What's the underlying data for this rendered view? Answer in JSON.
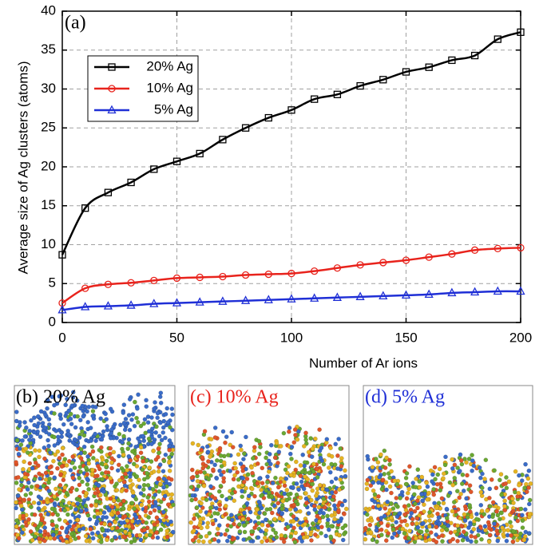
{
  "chart_data": {
    "type": "line",
    "annotation": "(a)",
    "xlabel": "Number of Ar ions",
    "ylabel": "Average size of Ag clusters (atoms)",
    "x": [
      0,
      10,
      20,
      30,
      40,
      50,
      60,
      70,
      80,
      90,
      100,
      110,
      120,
      130,
      140,
      150,
      160,
      170,
      180,
      190,
      200
    ],
    "series": [
      {
        "name": "20% Ag",
        "color": "#000000",
        "marker": "square",
        "values": [
          8.7,
          14.7,
          16.7,
          18.0,
          19.7,
          20.7,
          21.7,
          23.5,
          25.0,
          26.3,
          27.3,
          28.7,
          29.3,
          30.4,
          31.2,
          32.2,
          32.8,
          33.7,
          34.3,
          36.4,
          37.3
        ]
      },
      {
        "name": "10% Ag",
        "color": "#e8231c",
        "marker": "circle",
        "values": [
          2.5,
          4.4,
          4.9,
          5.1,
          5.4,
          5.7,
          5.8,
          5.9,
          6.1,
          6.2,
          6.3,
          6.6,
          7.0,
          7.4,
          7.7,
          8.0,
          8.4,
          8.8,
          9.3,
          9.5,
          9.6
        ]
      },
      {
        "name": "5% Ag",
        "color": "#1f2fd6",
        "marker": "triangle",
        "values": [
          1.6,
          2.0,
          2.1,
          2.2,
          2.4,
          2.5,
          2.6,
          2.7,
          2.8,
          2.9,
          3.0,
          3.1,
          3.2,
          3.3,
          3.4,
          3.5,
          3.6,
          3.8,
          3.9,
          4.0,
          4.0
        ]
      }
    ],
    "xlim": [
      0,
      200
    ],
    "xticks": [
      0,
      50,
      100,
      150,
      200
    ],
    "ylim": [
      0,
      40
    ],
    "yticks": [
      0,
      5,
      10,
      15,
      20,
      25,
      30,
      35,
      40
    ],
    "grid": true,
    "legend": "upper left"
  },
  "panels": [
    {
      "label": "(b) 20% Ag",
      "color": "#000000"
    },
    {
      "label": "(c) 10% Ag",
      "color": "#e8231c"
    },
    {
      "label": "(d) 5% Ag",
      "color": "#1f2fd6"
    }
  ]
}
